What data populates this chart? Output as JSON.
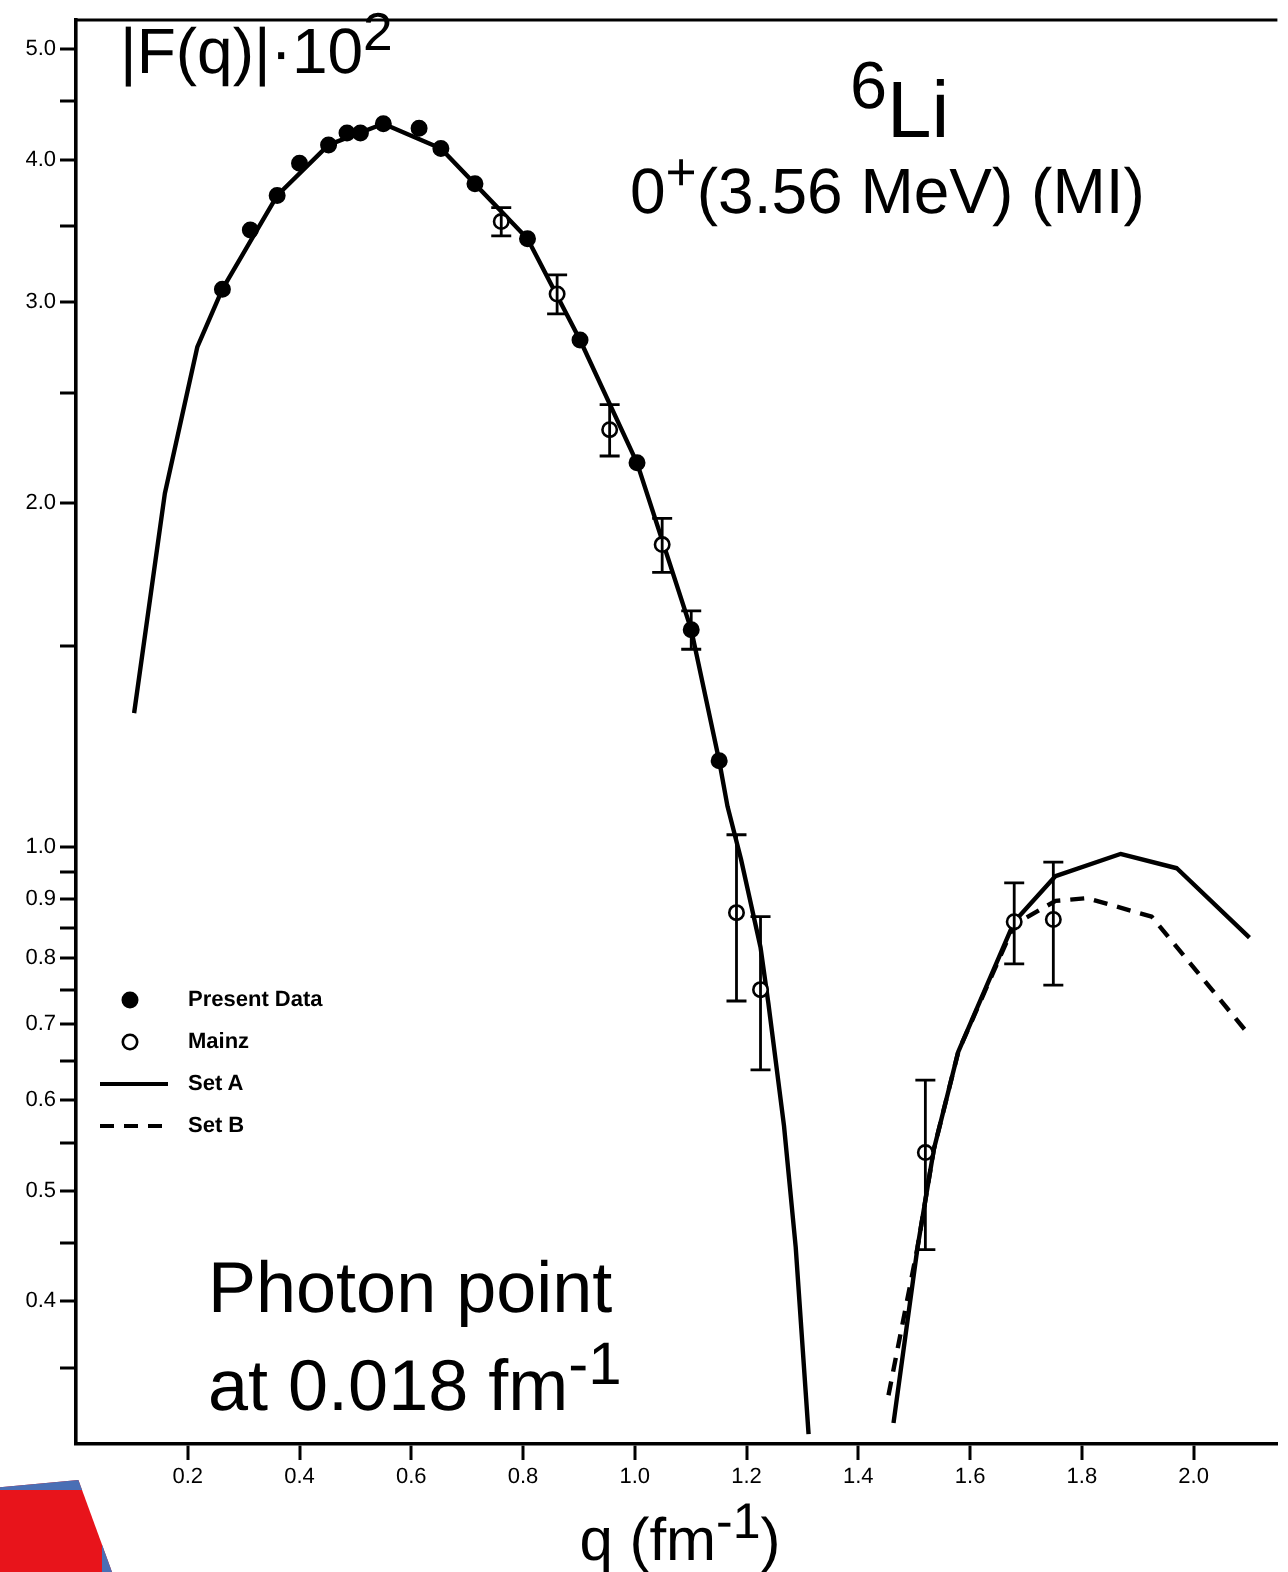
{
  "chart_data": {
    "type": "scatter",
    "title": "$^{6}$Li",
    "subtitle": "0$^{+}$(3.56 MeV) (MI)",
    "xlabel": "q (fm$^{-1}$)",
    "ylabel": "|F(q)|·10$^{2}$",
    "log": "y",
    "legend": "left",
    "grid": false,
    "xlim": [
      0,
      2.15
    ],
    "xticks": [
      0.2,
      0.4,
      0.6,
      0.8,
      {
        "value": 1,
        "label": "1.0"
      },
      1.2,
      1.4,
      1.6,
      1.8,
      {
        "value": 2,
        "label": "2.0"
      }
    ],
    "ylim": [
      0.3,
      5.3
    ],
    "yticks": [
      {
        "value": 0.35,
        "label": null
      },
      0.4,
      {
        "value": 0.45,
        "label": null
      },
      0.5,
      {
        "value": 0.55,
        "label": null
      },
      0.6,
      {
        "value": 0.65,
        "label": null
      },
      0.7,
      {
        "value": 0.75,
        "label": null
      },
      0.8,
      {
        "value": 0.85,
        "label": null
      },
      0.9,
      {
        "value": 0.95,
        "label": null
      },
      {
        "value": 1,
        "label": "1.0"
      },
      {
        "value": 1.5,
        "label": null
      },
      {
        "value": 2,
        "label": "2.0"
      },
      {
        "value": 2.5,
        "label": null
      },
      {
        "value": 3,
        "label": "3.0"
      },
      {
        "value": 3.5,
        "label": null
      },
      {
        "value": 4,
        "label": "4.0"
      },
      {
        "value": 4.5,
        "label": null
      },
      {
        "value": 5,
        "label": "5.0"
      }
    ],
    "annotations": [
      "Photon point at 0.018 fm$^{-1}$"
    ],
    "series": [
      {
        "name": "Present Data",
        "type": "scatter",
        "marker": "circle",
        "color": "#000000",
        "x": [
          0.262,
          0.312,
          0.36,
          0.4,
          0.452,
          0.485,
          0.509,
          0.55,
          0.614,
          0.653,
          0.714,
          0.808,
          0.902,
          1.004,
          1.101,
          1.151
        ],
        "values": [
          3.08,
          3.47,
          3.72,
          3.97,
          4.12,
          4.22,
          4.22,
          4.3,
          4.26,
          4.09,
          3.81,
          3.41,
          2.78,
          2.17,
          1.55,
          1.19
        ],
        "errors": [
          null,
          null,
          null,
          null,
          null,
          null,
          null,
          null,
          null,
          null,
          null,
          null,
          null,
          null,
          0.06,
          null
        ]
      },
      {
        "name": "Mainz",
        "type": "scatter",
        "marker": "circle",
        "color": "#000000",
        "x": [
          0.761,
          0.861,
          0.955,
          1.049,
          1.182,
          1.225,
          1.52,
          1.679,
          1.749
        ],
        "values": [
          3.53,
          3.05,
          2.32,
          1.84,
          0.876,
          0.75,
          0.54,
          0.86,
          0.864
        ],
        "errors": [
          0.1,
          0.12,
          0.12,
          0.1,
          [
            0.733,
            1.025
          ],
          [
            0.638,
            0.869
          ],
          [
            0.444,
            0.625
          ],
          [
            0.79,
            0.93
          ],
          [
            0.757,
            0.97
          ]
        ]
      },
      {
        "name": "Set A",
        "type": "line",
        "marker": "none",
        "line_style": "solid",
        "color": "#000000",
        "x": [
          0.104,
          0.159,
          0.217,
          0.262,
          0.36,
          0.452,
          0.55,
          0.653,
          0.808,
          0.902,
          1.004,
          1.101,
          1.151,
          1.166,
          1.19,
          1.225,
          1.239,
          1.267,
          1.288,
          1.311,
          1.39,
          1.463,
          1.506,
          1.535,
          1.579,
          1.679,
          1.753,
          1.869,
          1.97,
          2.1
        ],
        "values": [
          1.31,
          2.04,
          2.74,
          3.08,
          3.72,
          4.12,
          4.3,
          4.09,
          3.41,
          2.78,
          2.17,
          1.55,
          1.19,
          1.085,
          0.976,
          0.817,
          0.73,
          0.57,
          0.446,
          0.306,
          null,
          0.313,
          0.446,
          0.543,
          0.662,
          0.86,
          0.943,
          0.986,
          0.958,
          0.833
        ]
      },
      {
        "name": "Set B",
        "type": "line",
        "marker": "none",
        "line_style": "dashed",
        "color": "#000000",
        "x": [
          1.454,
          1.506,
          1.535,
          1.579,
          1.679,
          1.753,
          1.809,
          1.925,
          2.1
        ],
        "values": [
          0.331,
          0.446,
          0.543,
          0.662,
          0.855,
          0.897,
          0.902,
          0.869,
          0.684
        ]
      }
    ]
  }
}
